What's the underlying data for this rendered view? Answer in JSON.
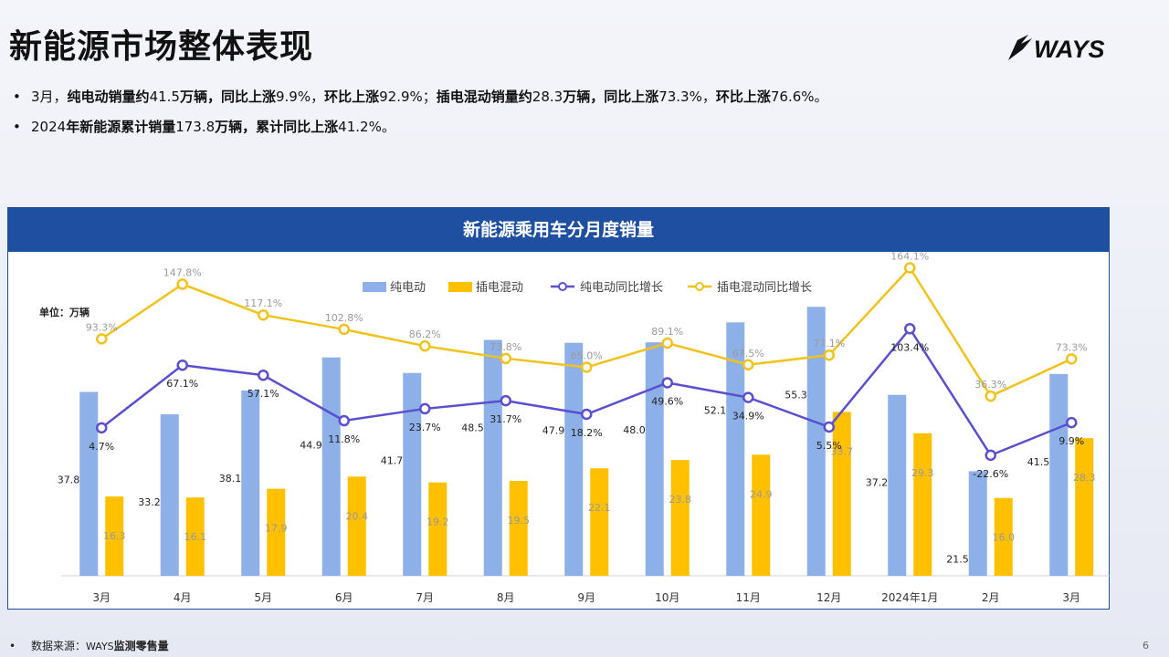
{
  "page": {
    "title": "新能源市场整体表现",
    "logo_text": "WAYS",
    "bullets": [
      [
        {
          "t": "3月，",
          "b": false
        },
        {
          "t": "纯电动销量约",
          "b": true
        },
        {
          "t": "41.5",
          "b": false
        },
        {
          "t": "万辆，同比上涨",
          "b": true
        },
        {
          "t": "9.9%，",
          "b": false
        },
        {
          "t": "环比上涨",
          "b": true
        },
        {
          "t": "92.9%；",
          "b": false
        },
        {
          "t": "插电混动销量约",
          "b": true
        },
        {
          "t": "28.3",
          "b": false
        },
        {
          "t": "万辆，同比上涨",
          "b": true
        },
        {
          "t": "73.3%，",
          "b": false
        },
        {
          "t": "环比上涨",
          "b": true
        },
        {
          "t": "76.6%。",
          "b": false
        }
      ],
      [
        {
          "t": "2024",
          "b": false
        },
        {
          "t": "年新能源累计销量",
          "b": true
        },
        {
          "t": "173.8",
          "b": false
        },
        {
          "t": "万辆，累计同比上涨",
          "b": true
        },
        {
          "t": "41.2%。",
          "b": false
        }
      ]
    ],
    "footer_label": "数据来源：",
    "footer_source_prefix": "WAYS",
    "footer_source": "监测零售量",
    "page_number": "6",
    "colors": {
      "header_bg": "#1f4fa0",
      "bev_bar": "#8eb0e8",
      "phev_bar": "#ffc000",
      "bev_line": "#5a4fcf",
      "phev_line": "#f2c21c"
    }
  },
  "chart_data": {
    "type": "bar",
    "title": "新能源乘用车分月度销量",
    "unit_label": "单位：万辆",
    "categories": [
      "3月",
      "4月",
      "5月",
      "6月",
      "7月",
      "8月",
      "9月",
      "10月",
      "11月",
      "12月",
      "2024年1月",
      "2月",
      "3月"
    ],
    "series": [
      {
        "name": "纯电动",
        "kind": "bar",
        "axis": "left",
        "values": [
          37.8,
          33.2,
          38.1,
          44.9,
          41.7,
          48.5,
          47.9,
          48.0,
          52.1,
          55.3,
          37.2,
          21.5,
          41.5
        ],
        "labels": [
          "37.8",
          "33.2",
          "38.1",
          "44.9",
          "41.7",
          "48.5",
          "47.9",
          "48.0",
          "52.1",
          "55.3",
          "37.2",
          "21.5",
          "41.5"
        ]
      },
      {
        "name": "插电混动",
        "kind": "bar",
        "axis": "left",
        "values": [
          16.3,
          16.1,
          17.9,
          20.4,
          19.2,
          19.5,
          22.1,
          23.8,
          24.9,
          33.7,
          29.3,
          16.0,
          28.3
        ],
        "labels": [
          "16.3",
          "16.1",
          "17.9",
          "20.4",
          "19.2",
          "19.5",
          "22.1",
          "23.8",
          "24.9",
          "33.7",
          "29.3",
          "16.0",
          "28.3"
        ]
      },
      {
        "name": "纯电动同比增长",
        "kind": "line",
        "axis": "right",
        "values": [
          4.7,
          67.1,
          57.1,
          11.8,
          23.7,
          31.7,
          18.2,
          49.6,
          34.9,
          5.5,
          103.4,
          -22.6,
          9.9
        ],
        "labels": [
          "4.7%",
          "67.1%",
          "57.1%",
          "11.8%",
          "23.7%",
          "31.7%",
          "18.2%",
          "49.6%",
          "34.9%",
          "5.5%",
          "103.4%",
          "-22.6%",
          "9.9%"
        ]
      },
      {
        "name": "插电混动同比增长",
        "kind": "line",
        "axis": "right",
        "values": [
          93.3,
          147.8,
          117.1,
          102.8,
          86.2,
          73.8,
          65.0,
          89.1,
          67.5,
          77.1,
          164.1,
          36.3,
          73.3
        ],
        "labels": [
          "93.3%",
          "147.8%",
          "117.1%",
          "102.8%",
          "86.2%",
          "73.8%",
          "65.0%",
          "89.1%",
          "67.5%",
          "77.1%",
          "164.1%",
          "36.3%",
          "73.3%"
        ]
      }
    ],
    "legend_position": "top-center",
    "grid": false
  }
}
